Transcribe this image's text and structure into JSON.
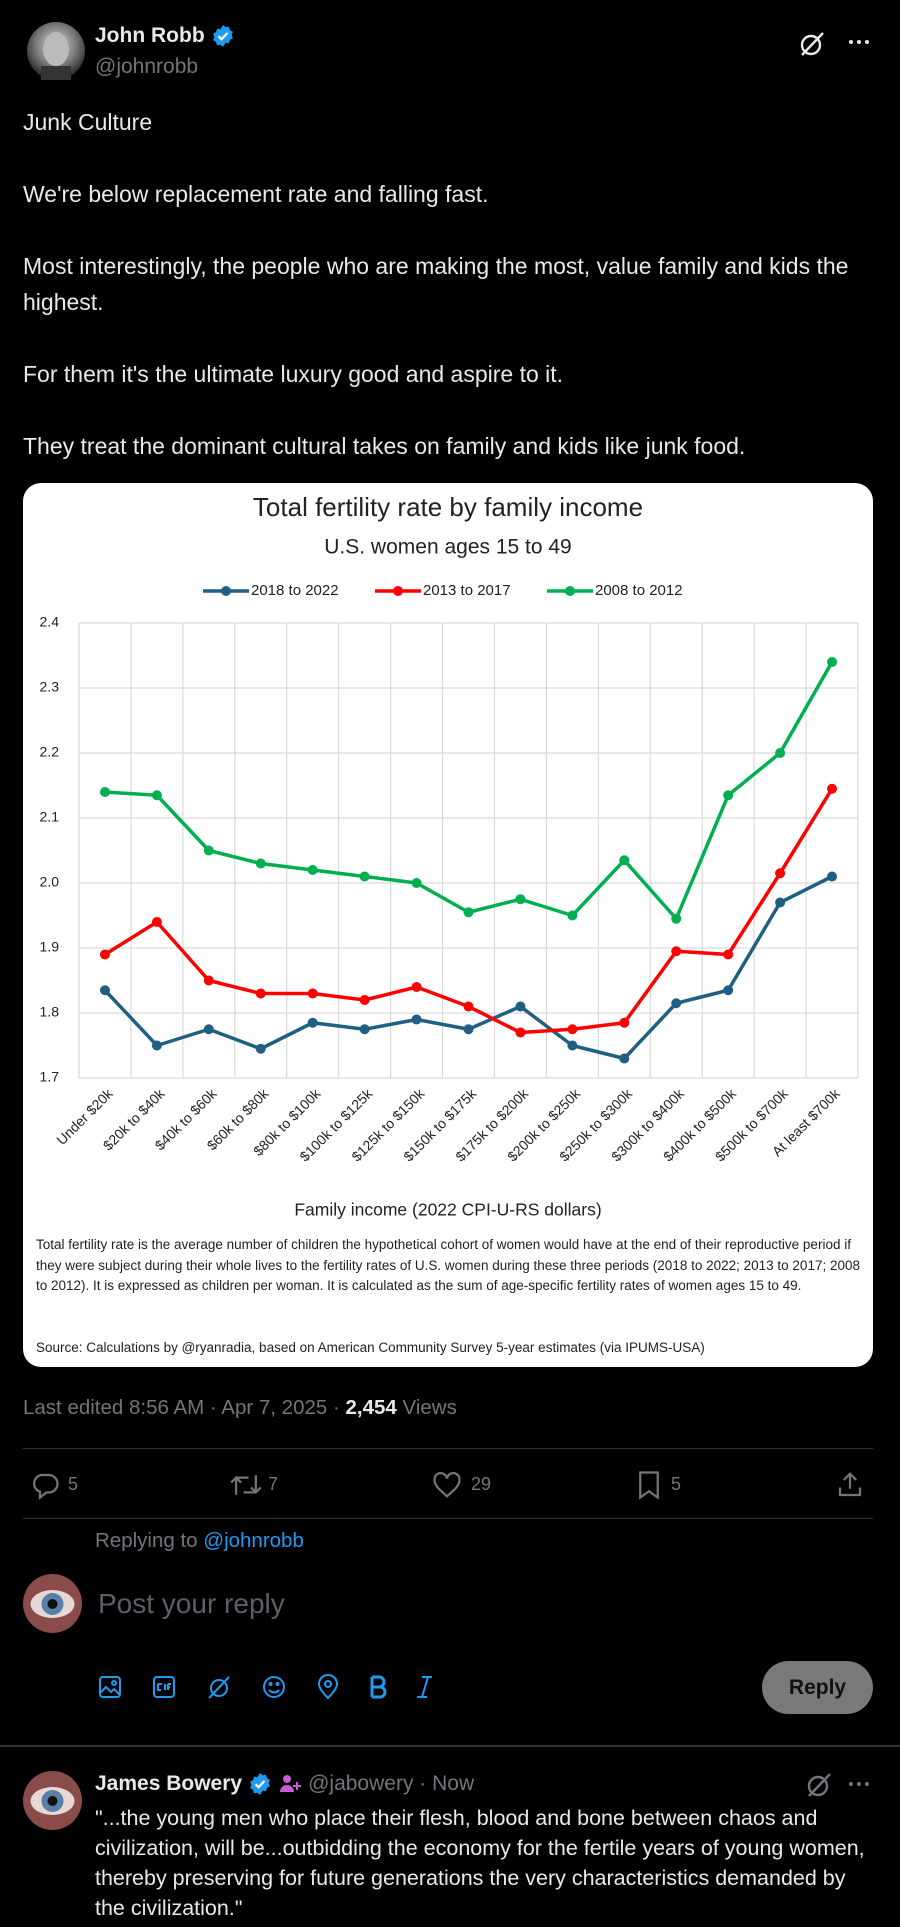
{
  "post": {
    "author": "John Robb",
    "handle": "@johnrobb",
    "text": [
      "Junk Culture",
      "We're below replacement rate and falling fast.",
      "Most interestingly, the people who are making the most, value family and kids the highest.",
      "For them it's the ultimate luxury good and aspire to it.",
      "They treat the dominant cultural takes on family and kids like junk food."
    ],
    "meta": "Last edited 8:56 AM · Apr 7, 2025 ·",
    "views": "2,454",
    "views_label": "Views",
    "replies": 5,
    "reposts": 7,
    "likes": 29,
    "bookmarks": 5
  },
  "chart_data": {
    "type": "line",
    "title": "Total fertility rate by family income",
    "subtitle": "U.S. women ages 15 to 49",
    "xlabel": "Family income (2022 CPI-U-RS dollars)",
    "categories": [
      "Under $20k",
      "$20k to $40k",
      "$40k to $60k",
      "$60k to $80k",
      "$80k to $100k",
      "$100k to $125k",
      "$125k to $150k",
      "$150k to $175k",
      "$175k to $200k",
      "$200k to $250k",
      "$250k to $300k",
      "$300k to $400k",
      "$400k to $500k",
      "$500k to $700k",
      "At least $700k"
    ],
    "series": [
      {
        "name": "2018 to 2022",
        "color": "#1f5f82",
        "values": [
          1.835,
          1.75,
          1.775,
          1.745,
          1.785,
          1.775,
          1.79,
          1.775,
          1.81,
          1.75,
          1.73,
          1.815,
          1.835,
          1.97,
          2.01
        ]
      },
      {
        "name": "2013 to 2017",
        "color": "#ff0000",
        "values": [
          1.89,
          1.94,
          1.85,
          1.83,
          1.83,
          1.82,
          1.84,
          1.81,
          1.77,
          1.775,
          1.785,
          1.895,
          1.89,
          2.015,
          2.145
        ]
      },
      {
        "name": "2008 to 2012",
        "color": "#00b050",
        "values": [
          2.14,
          2.135,
          2.05,
          2.03,
          2.02,
          2.01,
          2.0,
          1.955,
          1.975,
          1.95,
          2.035,
          1.945,
          2.135,
          2.2,
          2.34
        ]
      }
    ],
    "ylim": [
      1.7,
      2.4
    ],
    "yticks": [
      1.7,
      1.8,
      1.9,
      {
        "value": 2.0,
        "label": "2.0"
      },
      2.1,
      2.2,
      2.3,
      2.4
    ],
    "grid": true,
    "legend": "top",
    "note": "Total fertility rate is the average number of children the hypothetical cohort of women would have at the end of their reproductive period if they were subject during their whole lives to the fertility rates of U.S. women during these three periods (2018 to 2022; 2013 to 2017; 2008 to 2012). It is expressed as children per woman. It is calculated as the sum of age-specific fertility rates of women ages 15 to 49.",
    "source": "Source: Calculations by @ryanradia, based on American Community Survey 5-year estimates (via IPUMS-USA)"
  },
  "composer": {
    "replying_to": "Replying to",
    "mention": "@johnrobb",
    "placeholder": "Post your reply",
    "button": "Reply"
  },
  "reply": {
    "author": "James Bowery",
    "handle": "@jabowery · Now",
    "text": "\"...the young men who place their flesh, blood and bone between chaos and civilization, will be...outbidding the economy for the fertile years of young women, thereby preserving for future generations the very characteristics demanded by the civilization.\""
  }
}
